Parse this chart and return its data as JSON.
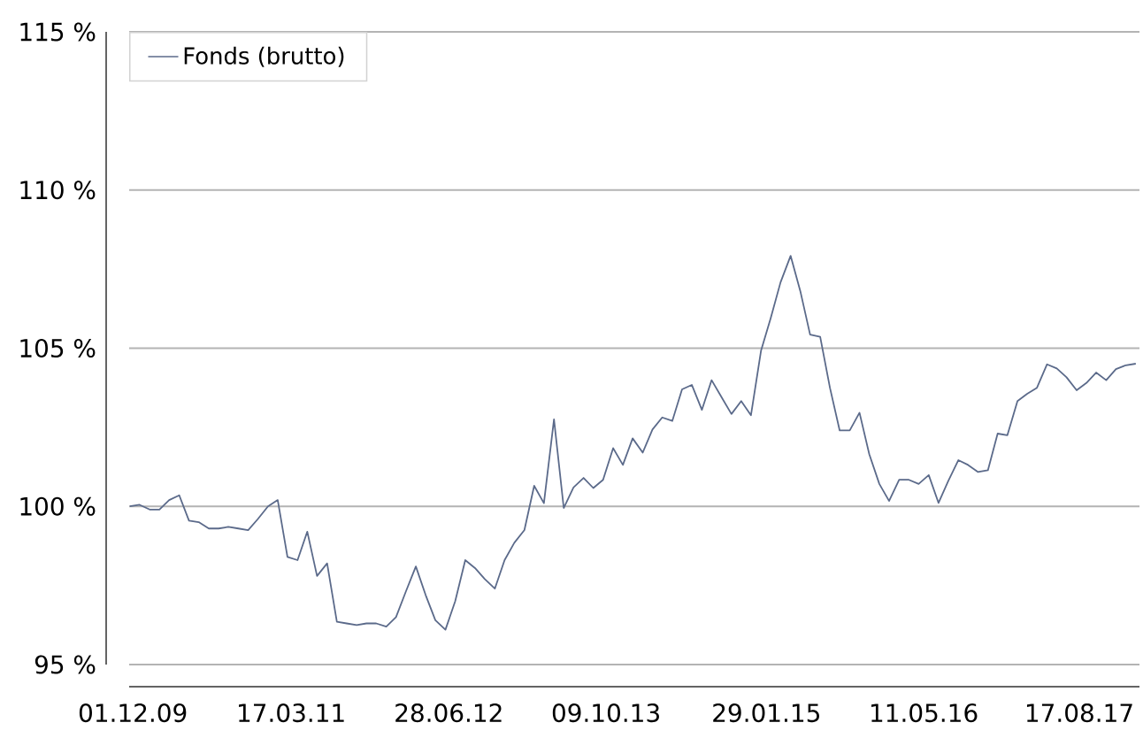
{
  "chart_data": {
    "type": "line",
    "x": [
      "2009-11-22",
      "2009-12-21",
      "2010-01-20",
      "2010-02-18",
      "2010-03-19",
      "2010-04-18",
      "2010-05-17",
      "2010-06-15",
      "2010-07-15",
      "2010-08-13",
      "2010-09-11",
      "2010-10-11",
      "2010-11-09",
      "2010-12-08",
      "2011-01-07",
      "2011-02-05",
      "2011-03-06",
      "2011-04-05",
      "2011-05-04",
      "2011-06-02",
      "2011-07-02",
      "2011-07-31",
      "2011-08-29",
      "2011-09-28",
      "2011-10-27",
      "2011-11-25",
      "2011-12-25",
      "2012-01-23",
      "2012-02-21",
      "2012-03-22",
      "2012-04-20",
      "2012-05-19",
      "2012-06-18",
      "2012-07-17",
      "2012-08-16",
      "2012-09-14",
      "2012-10-13",
      "2012-11-12",
      "2012-12-11",
      "2013-01-09",
      "2013-02-08",
      "2013-03-09",
      "2013-04-07",
      "2013-05-07",
      "2013-06-05",
      "2013-07-04",
      "2013-08-03",
      "2013-09-01",
      "2013-09-30",
      "2013-10-30",
      "2013-11-28",
      "2013-12-27",
      "2014-01-26",
      "2014-02-24",
      "2014-03-25",
      "2014-04-24",
      "2014-05-23",
      "2014-06-21",
      "2014-07-21",
      "2014-08-19",
      "2014-09-17",
      "2014-10-17",
      "2014-11-15",
      "2014-12-14",
      "2015-01-13",
      "2015-02-11",
      "2015-03-12",
      "2015-04-11",
      "2015-05-10",
      "2015-06-08",
      "2015-07-08",
      "2015-08-06",
      "2015-09-04",
      "2015-10-04",
      "2015-11-02",
      "2015-12-01",
      "2015-12-31",
      "2016-01-29",
      "2016-02-28",
      "2016-03-28",
      "2016-04-26",
      "2016-05-26",
      "2016-06-24",
      "2016-07-23",
      "2016-08-22",
      "2016-09-20",
      "2016-10-19",
      "2016-11-18",
      "2016-12-17",
      "2017-01-15",
      "2017-02-14",
      "2017-03-15",
      "2017-04-13",
      "2017-05-13",
      "2017-06-11",
      "2017-07-10",
      "2017-08-09",
      "2017-09-07",
      "2017-10-06",
      "2017-11-05",
      "2017-12-04",
      "2018-01-02",
      "2018-02-01"
    ],
    "series": [
      {
        "name": "Fonds (brutto)",
        "color": "#5b6a8a",
        "values": [
          100.0,
          100.05,
          99.9,
          99.9,
          100.2,
          100.35,
          99.55,
          99.5,
          99.3,
          99.3,
          99.35,
          99.3,
          99.25,
          99.6,
          100.0,
          100.2,
          98.4,
          98.3,
          99.2,
          97.8,
          98.2,
          96.35,
          96.3,
          96.25,
          96.3,
          96.3,
          96.2,
          96.5,
          97.3,
          98.1,
          97.2,
          96.4,
          96.1,
          97.0,
          98.3,
          98.05,
          97.7,
          97.4,
          98.3,
          98.85,
          99.25,
          100.65,
          100.1,
          102.75,
          99.95,
          100.6,
          100.9,
          100.58,
          100.84,
          101.84,
          101.31,
          102.15,
          101.7,
          102.43,
          102.81,
          102.7,
          103.7,
          103.84,
          103.05,
          103.99,
          103.46,
          102.92,
          103.33,
          102.88,
          104.92,
          105.96,
          107.08,
          107.92,
          106.8,
          105.43,
          105.36,
          103.75,
          102.4,
          102.4,
          102.96,
          101.65,
          100.71,
          100.17,
          100.84,
          100.84,
          100.71,
          100.99,
          100.11,
          100.8,
          101.46,
          101.31,
          101.09,
          101.14,
          102.3,
          102.25,
          103.33,
          103.56,
          103.75,
          104.49,
          104.36,
          104.08,
          103.67,
          103.9,
          104.23,
          103.99,
          104.34,
          104.46,
          104.51
        ]
      }
    ],
    "xlim": [
      "2009-11-20",
      "2018-02-12"
    ],
    "xticks": [
      {
        "value": "2009-12-01",
        "label": "01.12.09"
      },
      {
        "value": "2011-03-17",
        "label": "17.03.11"
      },
      {
        "value": "2012-06-28",
        "label": "28.06.12"
      },
      {
        "value": "2013-10-09",
        "label": "09.10.13"
      },
      {
        "value": "2015-01-29",
        "label": "29.01.15"
      },
      {
        "value": "2016-05-11",
        "label": "11.05.16"
      },
      {
        "value": "2017-08-17",
        "label": "17.08.17"
      }
    ],
    "ylim": [
      94.3,
      115
    ],
    "yticks": [
      {
        "value": 95,
        "label": "95 %"
      },
      {
        "value": 100,
        "label": "100 %"
      },
      {
        "value": 105,
        "label": "105 %"
      },
      {
        "value": 110,
        "label": "110 %"
      },
      {
        "value": 115,
        "label": "115 %"
      }
    ],
    "grid": "y",
    "legend": "top left"
  }
}
